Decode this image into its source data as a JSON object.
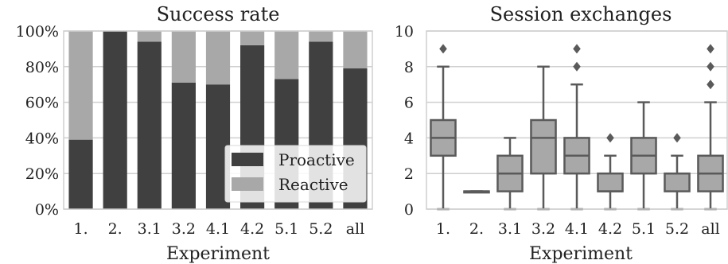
{
  "chart_data": [
    {
      "type": "bar",
      "stacked": true,
      "title": "Success rate",
      "xlabel": "Experiment",
      "ylabel": "",
      "ylim": [
        0,
        100
      ],
      "y_ticks": [
        "0%",
        "20%",
        "40%",
        "60%",
        "80%",
        "100%"
      ],
      "y_tick_values": [
        0,
        20,
        40,
        60,
        80,
        100
      ],
      "categories": [
        "1.",
        "2.",
        "3.1",
        "3.2",
        "4.1",
        "4.2",
        "5.1",
        "5.2",
        "all"
      ],
      "series": [
        {
          "name": "Proactive",
          "color": "#404040",
          "values": [
            39,
            100,
            94,
            71,
            70,
            92,
            73,
            94,
            79
          ]
        },
        {
          "name": "Reactive",
          "color": "#a8a8a8",
          "values": [
            61,
            0,
            6,
            29,
            30,
            8,
            27,
            6,
            21
          ]
        }
      ],
      "legend": {
        "placement": "bottom-right",
        "entries": [
          "Proactive",
          "Reactive"
        ]
      },
      "grid": true
    },
    {
      "type": "box",
      "title": "Session exchanges",
      "xlabel": "Experiment",
      "ylabel": "",
      "ylim": [
        0,
        10
      ],
      "y_ticks": [
        "0",
        "2",
        "4",
        "6",
        "8",
        "10"
      ],
      "y_tick_values": [
        0,
        2,
        4,
        6,
        8,
        10
      ],
      "categories": [
        "1.",
        "2.",
        "3.1",
        "3.2",
        "4.1",
        "4.2",
        "5.1",
        "5.2",
        "all"
      ],
      "box_color": "#a8a8a8",
      "line_color": "#5a5a5a",
      "boxes": [
        {
          "min": 0,
          "q1": 3,
          "median": 4,
          "q3": 5,
          "max": 8,
          "outliers": [
            9
          ]
        },
        {
          "min": 1,
          "q1": 1,
          "median": 1,
          "q3": 1,
          "max": 1,
          "outliers": []
        },
        {
          "min": 0,
          "q1": 1,
          "median": 2,
          "q3": 3,
          "max": 4,
          "outliers": []
        },
        {
          "min": 0,
          "q1": 2,
          "median": 4,
          "q3": 5,
          "max": 8,
          "outliers": []
        },
        {
          "min": 0,
          "q1": 2,
          "median": 3,
          "q3": 4,
          "max": 7,
          "outliers": [
            8,
            9
          ]
        },
        {
          "min": 0,
          "q1": 1,
          "median": 1,
          "q3": 2,
          "max": 3,
          "outliers": [
            4
          ]
        },
        {
          "min": 0,
          "q1": 2,
          "median": 3,
          "q3": 4,
          "max": 6,
          "outliers": []
        },
        {
          "min": 0,
          "q1": 1,
          "median": 2,
          "q3": 2,
          "max": 3,
          "outliers": [
            4
          ]
        },
        {
          "min": 0,
          "q1": 1,
          "median": 2,
          "q3": 3,
          "max": 6,
          "outliers": [
            7,
            8,
            9
          ]
        }
      ],
      "grid": true
    }
  ]
}
